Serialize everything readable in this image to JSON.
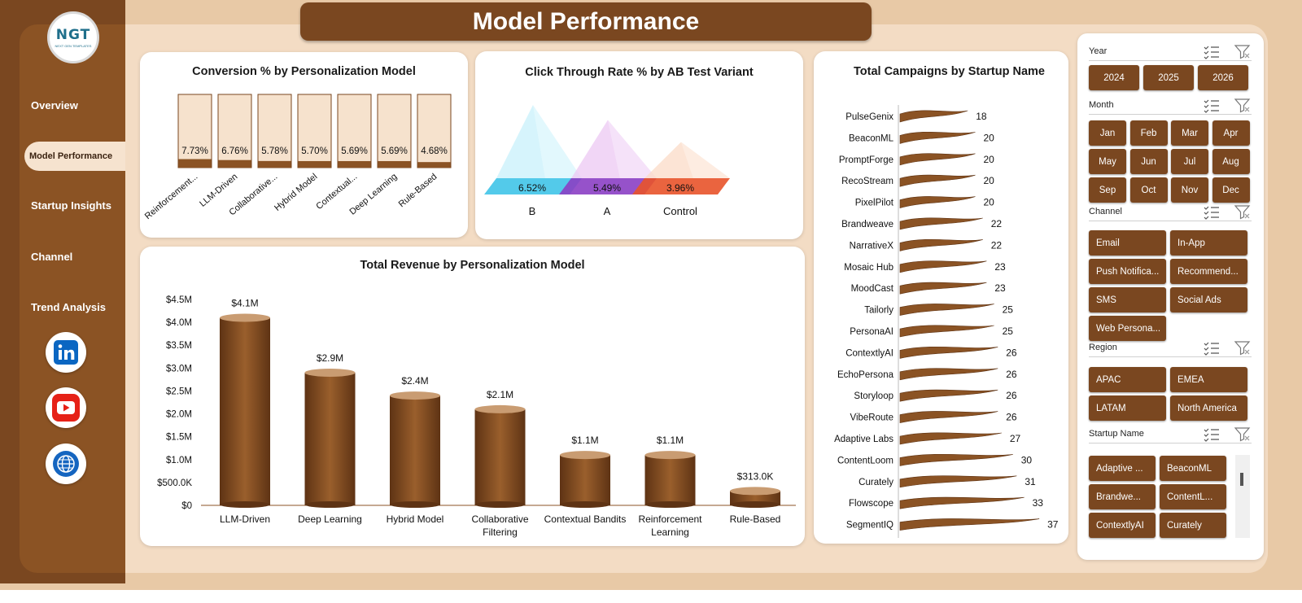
{
  "header": {
    "title": "Model Performance"
  },
  "logo": {
    "text": "NGT",
    "sub": "NEXT GEN TEMPLATES"
  },
  "nav": [
    {
      "label": "Overview",
      "active": false
    },
    {
      "label": "Model Performance",
      "active": true
    },
    {
      "label": "Startup Insights",
      "active": false
    },
    {
      "label": "Channel",
      "active": false
    },
    {
      "label": "Trend Analysis",
      "active": false
    }
  ],
  "social": [
    {
      "icon": "linkedin-icon",
      "color": "#0a66c2"
    },
    {
      "icon": "youtube-icon",
      "color": "#e62117"
    },
    {
      "icon": "globe-icon",
      "color": "#1565c0"
    }
  ],
  "chart_data": [
    {
      "type": "bar",
      "title": "Conversion  % by Personalization Model",
      "categories": [
        "Reinforcement...",
        "LLM-Driven",
        "Collaborative...",
        "Hybrid Model",
        "Contextual...",
        "Deep Learning",
        "Rule-Based"
      ],
      "values": [
        7.73,
        6.76,
        5.78,
        5.7,
        5.69,
        5.69,
        4.68
      ],
      "data_labels": [
        "7.73%",
        "6.76%",
        "5.78%",
        "5.70%",
        "5.69%",
        "5.69%",
        "4.68%"
      ]
    },
    {
      "type": "bar",
      "title": "Click Through  Rate % by AB Test Variant",
      "categories": [
        "B",
        "A",
        "Control"
      ],
      "values": [
        6.52,
        5.49,
        3.96
      ],
      "data_labels": [
        "6.52%",
        "5.49%",
        "3.96%"
      ],
      "colors": [
        "#40c4e8",
        "#8b3fc4",
        "#e8532a"
      ]
    },
    {
      "type": "bar",
      "title": "Total Revenue  by Personalization Model",
      "categories": [
        "LLM-Driven",
        "Deep Learning",
        "Hybrid Model",
        "Collaborative Filtering",
        "Contextual Bandits",
        "Reinforcement Learning",
        "Rule-Based"
      ],
      "values": [
        4100000,
        2900000,
        2400000,
        2100000,
        1100000,
        1100000,
        313000
      ],
      "data_labels": [
        "$4.1M",
        "$2.9M",
        "$2.4M",
        "$2.1M",
        "$1.1M",
        "$1.1M",
        "$313.0K"
      ],
      "yticks": [
        "$0",
        "$500.0K",
        "$1.0M",
        "$1.5M",
        "$2.0M",
        "$2.5M",
        "$3.0M",
        "$3.5M",
        "$4.0M",
        "$4.5M"
      ],
      "ylim": [
        0,
        4500000
      ]
    },
    {
      "type": "bar",
      "title": "Total Campaigns by Startup Name",
      "categories": [
        "PulseGenix",
        "BeaconML",
        "PromptForge",
        "RecoStream",
        "PixelPilot",
        "Brandweave",
        "NarrativeX",
        "Mosaic Hub",
        "MoodCast",
        "Tailorly",
        "PersonaAI",
        "ContextlyAI",
        "EchoPersona",
        "Storyloop",
        "VibeRoute",
        "Adaptive Labs",
        "ContentLoom",
        "Curately",
        "Flowscope",
        "SegmentIQ"
      ],
      "values": [
        18,
        20,
        20,
        20,
        20,
        22,
        22,
        23,
        23,
        25,
        25,
        26,
        26,
        26,
        26,
        27,
        30,
        31,
        33,
        37
      ]
    }
  ],
  "filters": [
    {
      "label": "Year",
      "buttons": [
        "2024",
        "2025",
        "2026"
      ]
    },
    {
      "label": "Month",
      "buttons": [
        "Jan",
        "Feb",
        "Mar",
        "Apr",
        "May",
        "Jun",
        "Jul",
        "Aug",
        "Sep",
        "Oct",
        "Nov",
        "Dec"
      ]
    },
    {
      "label": "Channel",
      "buttons": [
        "Email",
        "In-App",
        "Push Notifica...",
        "Recommend...",
        "SMS",
        "Social Ads",
        "Web Persona..."
      ]
    },
    {
      "label": "Region",
      "buttons": [
        "APAC",
        "EMEA",
        "LATAM",
        "North America"
      ]
    },
    {
      "label": "Startup Name",
      "buttons": [
        "Adaptive ...",
        "BeaconML",
        "Brandwe...",
        "ContentL...",
        "ContextlyAI",
        "Curately"
      ]
    }
  ]
}
